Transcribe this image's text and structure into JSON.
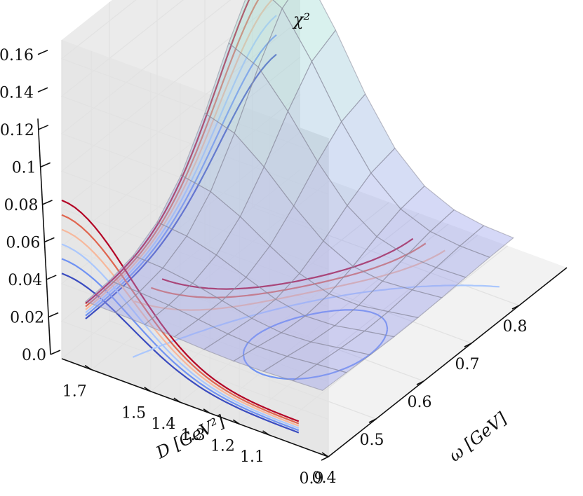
{
  "chart_data": {
    "type": "surface3d",
    "title": "",
    "xlabel": "ω [GeV]",
    "ylabel": "D [GeV²]",
    "zlabel": "χ²",
    "xlim": [
      0.4,
      0.9
    ],
    "ylim": [
      0.9,
      1.8
    ],
    "zlim": [
      0.0,
      0.17
    ],
    "x_ticks": [
      "0.4",
      "0.5",
      "0.6",
      "0.7",
      "0.8"
    ],
    "y_ticks": [
      "0.9",
      "1.1",
      "1.2",
      "1.3",
      "1.4",
      "1.5",
      "1.7"
    ],
    "z_ticks": [
      "0.0",
      "0.02",
      "0.04",
      "0.06",
      "0.08",
      "0.1",
      "0.12",
      "0.14",
      "0.16"
    ],
    "grid": true,
    "x": [
      0.45,
      0.5,
      0.55,
      0.6,
      0.65,
      0.7,
      0.75,
      0.8,
      0.85
    ],
    "y": [
      1.0,
      1.1,
      1.2,
      1.3,
      1.4,
      1.5,
      1.6,
      1.7,
      1.8
    ],
    "z_peak": {
      "omega": 0.85,
      "D": 1.8,
      "chi2": 0.13
    },
    "z_background": 0.02,
    "surface_colors": {
      "low": "#9a9aee",
      "high": "#a8f0cf"
    },
    "contour_levels": [
      0.01,
      0.015,
      0.02,
      0.025,
      0.03,
      0.035
    ],
    "contour_colors": [
      "#3b4cc0",
      "#6f92f3",
      "#aac7fd",
      "#f7b89c",
      "#e0654f",
      "#b40426"
    ]
  }
}
